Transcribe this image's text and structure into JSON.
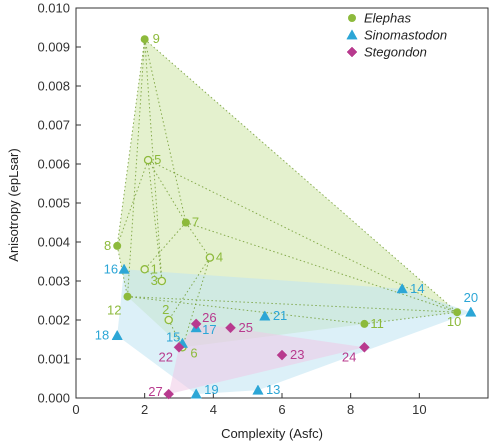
{
  "chart_data": {
    "type": "scatter",
    "xlabel": "Complexity (Asfc)",
    "ylabel": "Anisotropy (epLsar)",
    "xlim": [
      0,
      12
    ],
    "ylim": [
      0,
      0.01
    ],
    "xticks": [
      "0",
      "2",
      "4",
      "6",
      "8",
      "10"
    ],
    "yticks": [
      "0.000",
      "0.001",
      "0.002",
      "0.003",
      "0.004",
      "0.005",
      "0.006",
      "0.007",
      "0.008",
      "0.009",
      "0.010"
    ],
    "grid": false,
    "legend_position": "top-right",
    "series": [
      {
        "name": "Elephas",
        "marker": "circle",
        "color": "#8dba3c",
        "hull_fill": "#cde5a6",
        "points": [
          {
            "id": "1",
            "x": 2.0,
            "y": 0.0033,
            "hollow": true
          },
          {
            "id": "2",
            "x": 2.7,
            "y": 0.002,
            "hollow": true
          },
          {
            "id": "3",
            "x": 2.5,
            "y": 0.003,
            "hollow": true
          },
          {
            "id": "4",
            "x": 3.9,
            "y": 0.0036,
            "hollow": true
          },
          {
            "id": "5",
            "x": 2.1,
            "y": 0.0061,
            "hollow": true
          },
          {
            "id": "6",
            "x": 3.1,
            "y": 0.0013,
            "hollow": true
          },
          {
            "id": "7",
            "x": 3.2,
            "y": 0.0045,
            "hollow": false
          },
          {
            "id": "8",
            "x": 1.2,
            "y": 0.0039,
            "hollow": false
          },
          {
            "id": "9",
            "x": 2.0,
            "y": 0.0092,
            "hollow": false
          },
          {
            "id": "10",
            "x": 11.1,
            "y": 0.0022,
            "hollow": false
          },
          {
            "id": "11",
            "x": 8.4,
            "y": 0.0019,
            "hollow": false
          },
          {
            "id": "12",
            "x": 1.5,
            "y": 0.0026,
            "hollow": false
          }
        ]
      },
      {
        "name": "Sinomastodon",
        "marker": "triangle",
        "color": "#2ca6d6",
        "hull_fill": "#bfe3f3",
        "points": [
          {
            "id": "13",
            "x": 5.3,
            "y": 0.0002
          },
          {
            "id": "14",
            "x": 9.5,
            "y": 0.0028
          },
          {
            "id": "15",
            "x": 3.1,
            "y": 0.0014
          },
          {
            "id": "16",
            "x": 1.4,
            "y": 0.0033
          },
          {
            "id": "17",
            "x": 3.5,
            "y": 0.0018
          },
          {
            "id": "18",
            "x": 1.2,
            "y": 0.0016
          },
          {
            "id": "19",
            "x": 3.5,
            "y": 0.0001
          },
          {
            "id": "20",
            "x": 11.5,
            "y": 0.0022
          },
          {
            "id": "21",
            "x": 5.5,
            "y": 0.0021
          }
        ]
      },
      {
        "name": "Stegondon",
        "marker": "diamond",
        "color": "#b83a8e",
        "hull_fill": "#eec9e5",
        "points": [
          {
            "id": "22",
            "x": 3.0,
            "y": 0.0013
          },
          {
            "id": "23",
            "x": 6.0,
            "y": 0.0011
          },
          {
            "id": "24",
            "x": 8.4,
            "y": 0.0013
          },
          {
            "id": "25",
            "x": 4.5,
            "y": 0.0018
          },
          {
            "id": "26",
            "x": 3.5,
            "y": 0.0019
          },
          {
            "id": "27",
            "x": 2.7,
            "y": 0.0001
          }
        ]
      }
    ]
  }
}
